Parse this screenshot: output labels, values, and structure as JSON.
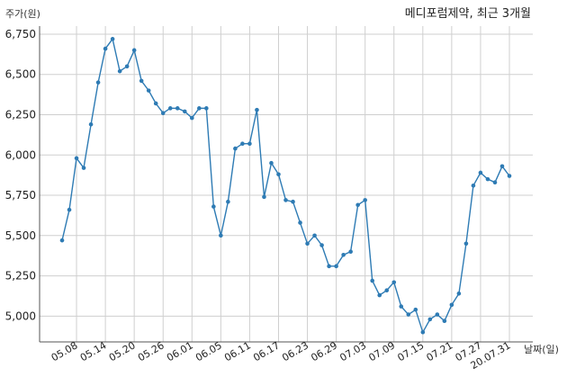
{
  "chart_data": {
    "type": "line",
    "title": "메디포럼제약, 최근 3개월",
    "ylabel": "주가(원)",
    "xlabel": "날짜(일)",
    "ylim": [
      4840,
      6800
    ],
    "yticks": [
      5000,
      5250,
      5500,
      5750,
      6000,
      6250,
      6500,
      6750
    ],
    "ytick_labels": [
      "5,000",
      "5,250",
      "5,500",
      "5,750",
      "6,000",
      "6,250",
      "6,500",
      "6,750"
    ],
    "xtick_labels": [
      "05.08",
      "05.14",
      "05.20",
      "05.26",
      "06.01",
      "06.05",
      "06.11",
      "06.17",
      "06.23",
      "06.29",
      "07.03",
      "07.09",
      "07.15",
      "07.21",
      "07.27",
      "20.07.31"
    ],
    "xtick_index": [
      2,
      6,
      10,
      14,
      18,
      22,
      26,
      30,
      34,
      38,
      42,
      46,
      50,
      54,
      58,
      62
    ],
    "grid": true,
    "line_color": "#2e7bb4",
    "series": [
      {
        "values": [
          5470,
          5660,
          5980,
          5920,
          6190,
          6450,
          6660,
          6720,
          6520,
          6550,
          6650,
          6460,
          6400,
          6320,
          6260,
          6290,
          6290,
          6270,
          6230,
          6290,
          6290,
          5680,
          5500,
          5710,
          6040,
          6070,
          6070,
          6280,
          5740,
          5950,
          5880,
          5720,
          5710,
          5580,
          5450,
          5500,
          5440,
          5310,
          5310,
          5380,
          5400,
          5690,
          5720,
          5220,
          5130,
          5160,
          5210,
          5060,
          5010,
          5040,
          4900,
          4980,
          5010,
          4970,
          5070,
          5140,
          5450,
          5810,
          5890,
          5850,
          5830,
          5930,
          5870
        ]
      }
    ]
  }
}
